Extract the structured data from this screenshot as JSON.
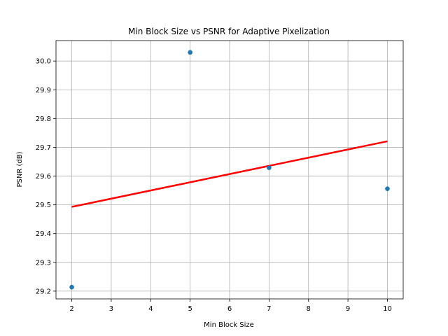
{
  "chart_data": {
    "type": "scatter",
    "title": "Min Block Size vs PSNR for Adaptive Pixelization",
    "xlabel": "Min Block Size",
    "ylabel": "PSNR (dB)",
    "x_ticks": [
      2,
      3,
      4,
      5,
      6,
      7,
      8,
      9,
      10
    ],
    "y_ticks": [
      29.2,
      29.3,
      29.4,
      29.5,
      29.6,
      29.7,
      29.8,
      29.9,
      30.0
    ],
    "x_tick_labels": [
      "2",
      "3",
      "4",
      "5",
      "6",
      "7",
      "8",
      "9",
      "10"
    ],
    "y_tick_labels": [
      "29.2",
      "29.3",
      "29.4",
      "29.5",
      "29.6",
      "29.7",
      "29.8",
      "29.9",
      "30.0"
    ],
    "xlim": [
      1.6,
      10.4
    ],
    "ylim": [
      29.173,
      30.071
    ],
    "grid": true,
    "series": [
      {
        "points": [
          {
            "x": 2,
            "y": 29.214
          },
          {
            "x": 5,
            "y": 30.03
          },
          {
            "x": 7,
            "y": 29.629
          },
          {
            "x": 10,
            "y": 29.556
          }
        ],
        "color": "#1f77b4"
      }
    ],
    "trendline": {
      "points": [
        {
          "x": 2,
          "y": 29.493
        },
        {
          "x": 10,
          "y": 29.721
        }
      ],
      "color": "#ff0000"
    }
  }
}
